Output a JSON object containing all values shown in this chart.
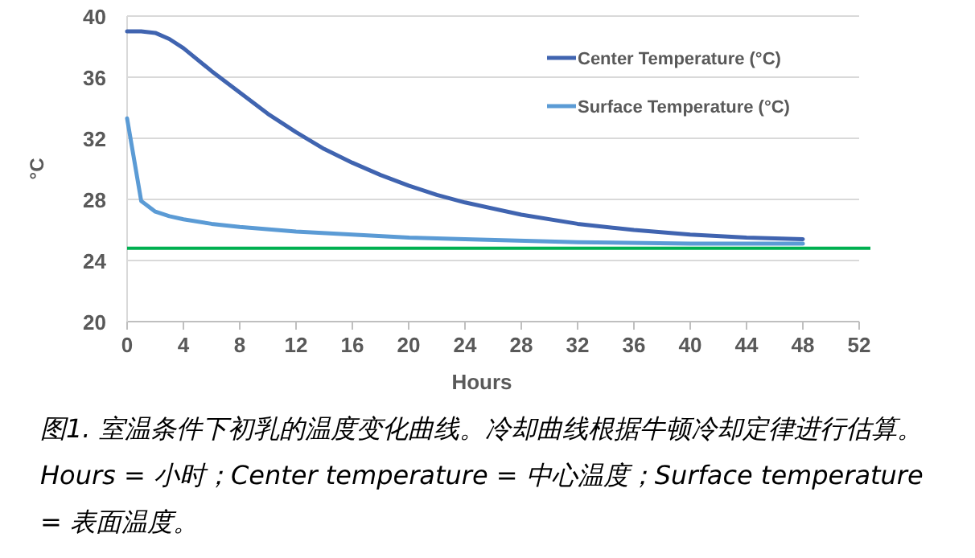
{
  "chart_data": {
    "type": "line",
    "ylabel": "°C",
    "xlabel": "Hours",
    "xlim": [
      0,
      52
    ],
    "xticks": [
      0,
      4,
      8,
      12,
      16,
      20,
      24,
      28,
      32,
      36,
      40,
      44,
      48,
      52
    ],
    "ylim": [
      20,
      40
    ],
    "yticks": [
      20,
      24,
      28,
      32,
      36,
      40
    ],
    "grid": "y",
    "legend": "top right",
    "marker": "none",
    "line_style": "solid",
    "series": [
      {
        "name": "Center Temperature (°C)",
        "color": "#4064b0",
        "x": [
          0,
          1,
          2,
          3,
          4,
          6,
          8,
          10,
          12,
          14,
          16,
          18,
          20,
          22,
          24,
          28,
          32,
          36,
          40,
          44,
          48
        ],
        "values": [
          39.0,
          39.0,
          38.9,
          38.5,
          37.9,
          36.4,
          35.0,
          33.6,
          32.4,
          31.3,
          30.4,
          29.6,
          28.9,
          28.3,
          27.8,
          27.0,
          26.4,
          26.0,
          25.7,
          25.5,
          25.4
        ]
      },
      {
        "name": "Surface Temperature (°C)",
        "color": "#5b9bd5",
        "x": [
          0,
          1,
          2,
          3,
          4,
          6,
          8,
          12,
          16,
          20,
          24,
          32,
          40,
          48
        ],
        "values": [
          33.3,
          27.9,
          27.2,
          26.9,
          26.7,
          26.4,
          26.2,
          25.9,
          25.7,
          25.5,
          25.4,
          25.2,
          25.1,
          25.1
        ]
      }
    ],
    "ref_lines": [
      {
        "axis": "y",
        "value": 24.8,
        "color": "#00b050"
      }
    ],
    "annotations": [
      "图1. 室温条件下初乳的温度变化曲线。冷却曲线根据牛顿冷却定律进行估算。Hours = 小时；Center temperature = 中心温度；Surface temperature = 表面温度。"
    ]
  }
}
